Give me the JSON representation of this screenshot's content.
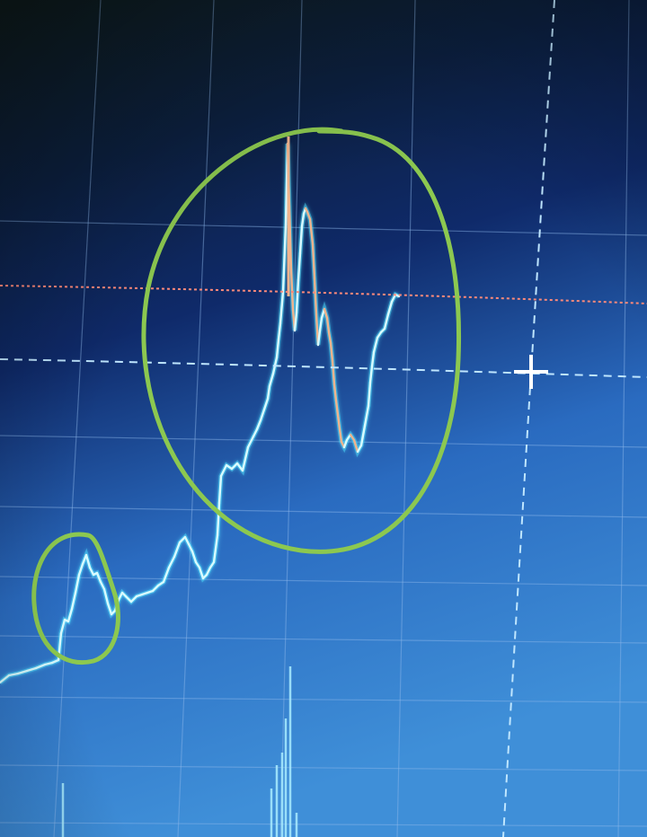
{
  "colors": {
    "screen_top": "#0f1d1d",
    "screen_mid": "#0f2a6a",
    "screen_bottom": "#3f8fd8",
    "grid": "#8fb8ec",
    "candle_up": "#d8fbff",
    "candle_down": "#f0b48e",
    "candle_glow": "#52e2ff",
    "price_line": "#ff8a7a",
    "crosshair": "#bfe6ff",
    "marker": "#8cc850",
    "volume": "#a9ecff"
  },
  "icons": {
    "cursor": "crosshair-cursor-icon"
  },
  "annotations": [
    {
      "kind": "hand-drawn-ellipse",
      "color": "#8cc850"
    },
    {
      "kind": "hand-drawn-ellipse",
      "color": "#8cc850"
    }
  ]
}
